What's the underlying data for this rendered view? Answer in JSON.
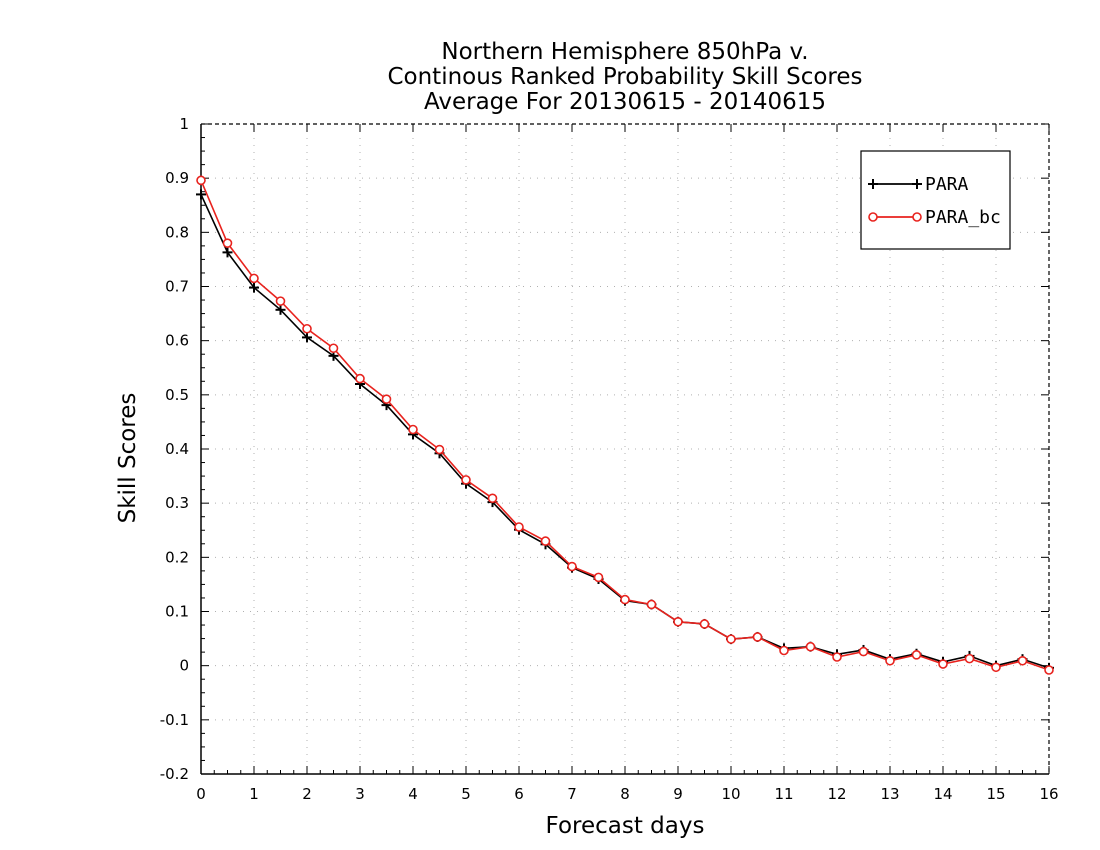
{
  "chart_data": {
    "type": "line",
    "title": [
      "Northern Hemisphere 850hPa v.",
      "Continous Ranked Probability Skill Scores",
      "Average For 20130615 - 20140615"
    ],
    "xlabel": "Forecast days",
    "ylabel": "Skill Scores",
    "xlim": [
      0,
      16
    ],
    "ylim": [
      -0.2,
      1
    ],
    "xticks": [
      0,
      1,
      2,
      3,
      4,
      5,
      6,
      7,
      8,
      9,
      10,
      11,
      12,
      13,
      14,
      15,
      16
    ],
    "yticks": [
      -0.2,
      -0.1,
      0,
      0.1,
      0.2,
      0.3,
      0.4,
      0.5,
      0.6,
      0.7,
      0.8,
      0.9,
      1
    ],
    "ytick_labels": [
      "-0.2",
      "-0.1",
      "0",
      "0.1",
      "0.2",
      "0.3",
      "0.4",
      "0.5",
      "0.6",
      "0.7",
      "0.8",
      "0.9",
      "1"
    ],
    "grid": true,
    "legend_position": "top-right",
    "x": [
      0,
      0.5,
      1,
      1.5,
      2,
      2.5,
      3,
      3.5,
      4,
      4.5,
      5,
      5.5,
      6,
      6.5,
      7,
      7.5,
      8,
      8.5,
      9,
      9.5,
      10,
      10.5,
      11,
      11.5,
      12,
      12.5,
      13,
      13.5,
      14,
      14.5,
      15,
      15.5,
      16
    ],
    "series": [
      {
        "name": "PARA",
        "color": "#000000",
        "marker": "plus",
        "values": [
          0.87,
          0.763,
          0.698,
          0.657,
          0.606,
          0.572,
          0.52,
          0.481,
          0.427,
          0.392,
          0.336,
          0.302,
          0.251,
          0.224,
          0.181,
          0.16,
          0.12,
          0.113,
          0.081,
          0.077,
          0.049,
          0.053,
          0.032,
          0.035,
          0.021,
          0.029,
          0.012,
          0.022,
          0.007,
          0.018,
          0.0,
          0.012,
          -0.004
        ]
      },
      {
        "name": "PARA_bc",
        "color": "#e8231e",
        "marker": "circle",
        "values": [
          0.896,
          0.78,
          0.715,
          0.673,
          0.622,
          0.586,
          0.53,
          0.492,
          0.436,
          0.399,
          0.343,
          0.309,
          0.256,
          0.23,
          0.183,
          0.163,
          0.122,
          0.113,
          0.081,
          0.077,
          0.049,
          0.053,
          0.028,
          0.035,
          0.016,
          0.026,
          0.009,
          0.02,
          0.003,
          0.013,
          -0.003,
          0.009,
          -0.008
        ]
      }
    ]
  }
}
